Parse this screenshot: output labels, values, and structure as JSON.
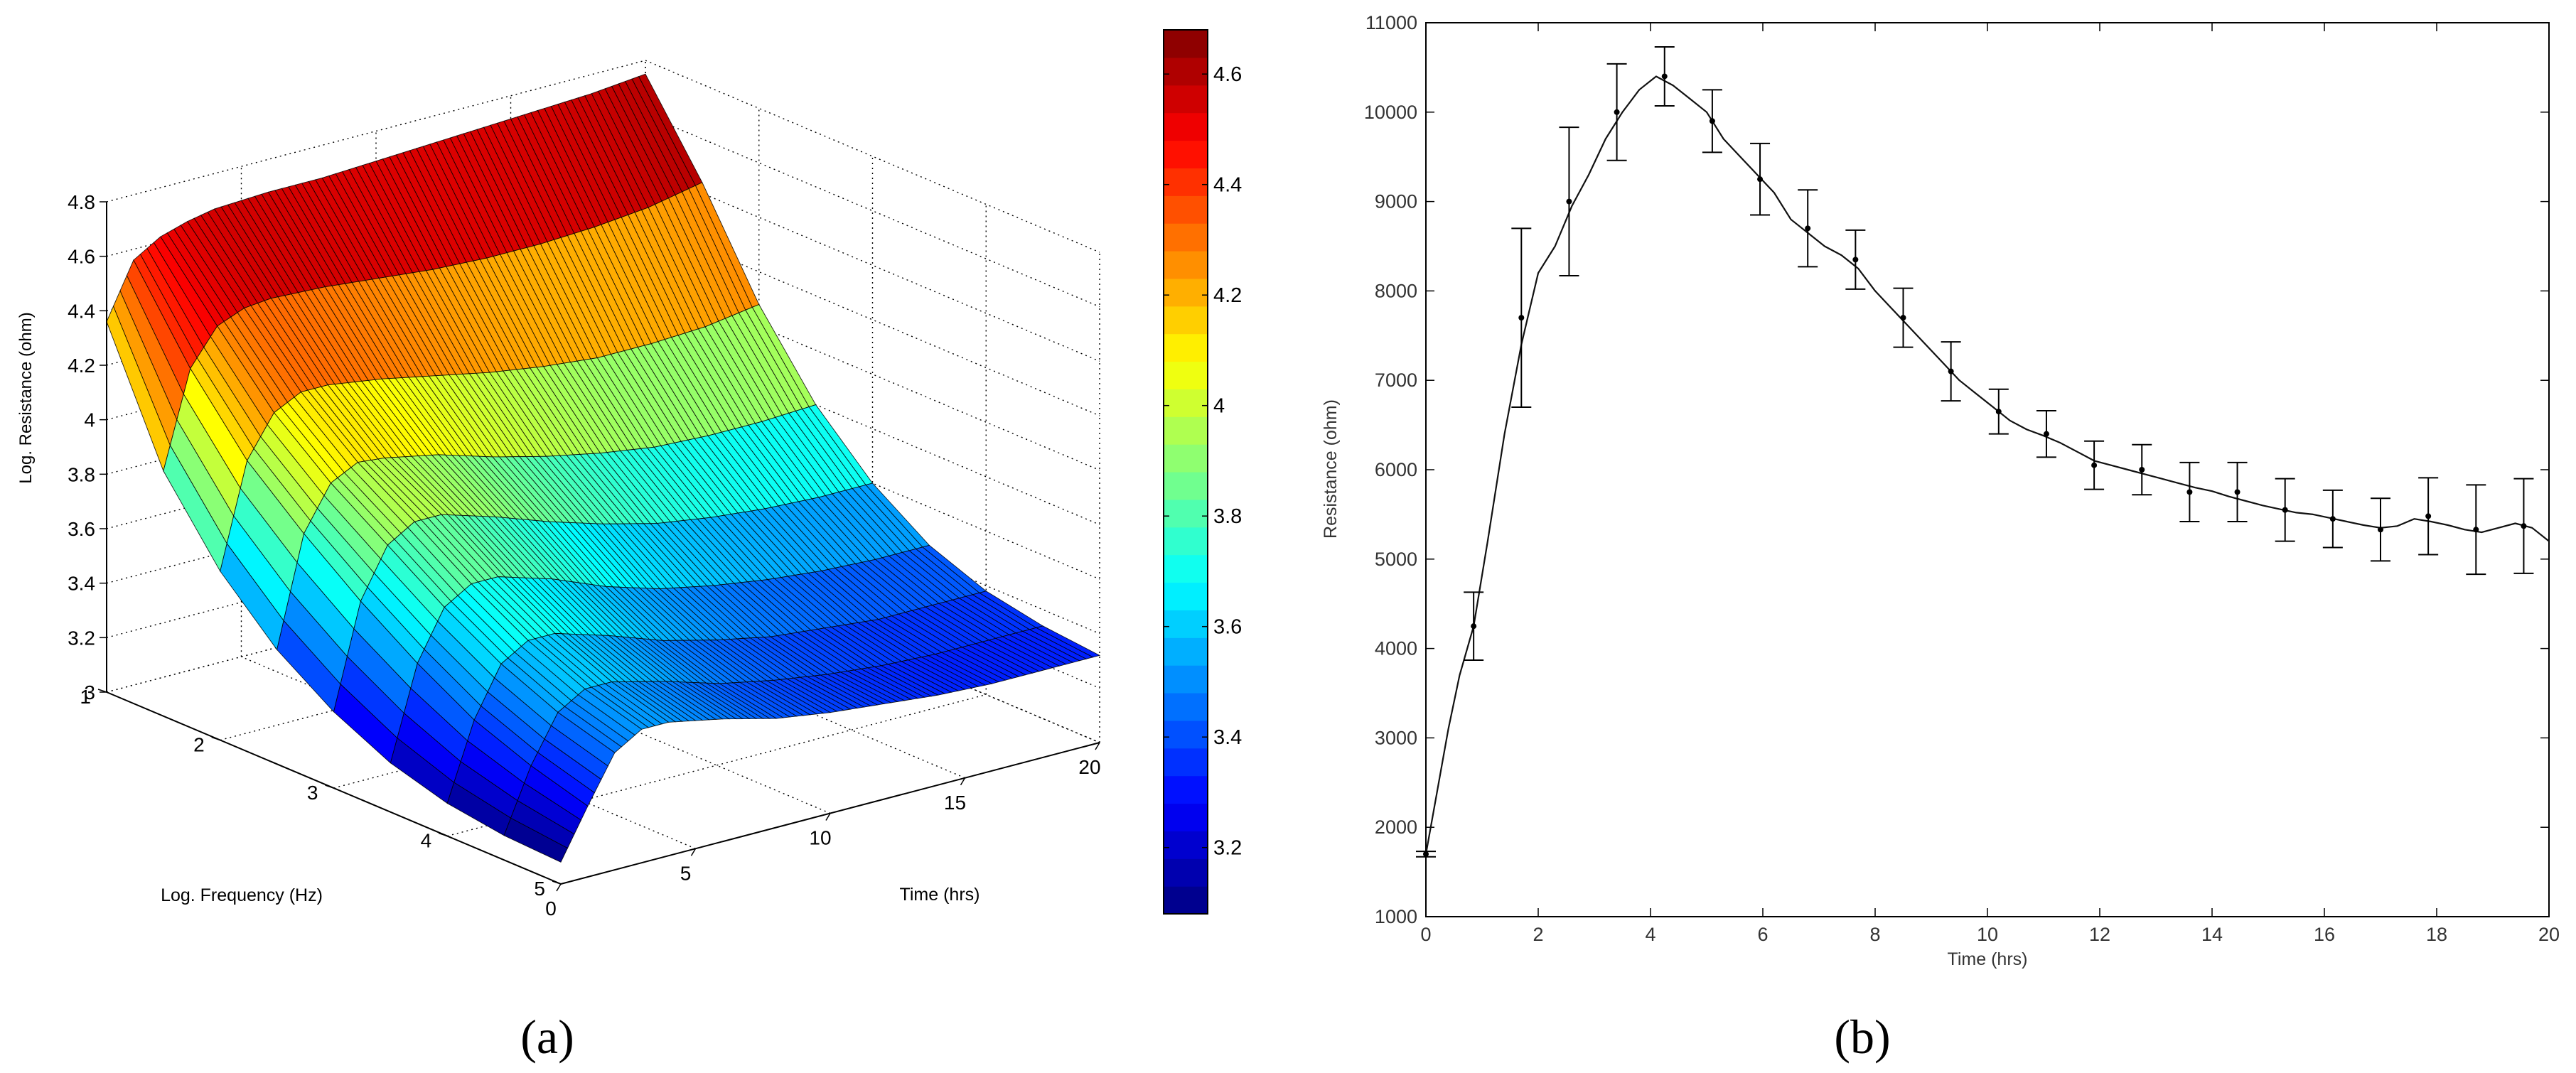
{
  "panels": {
    "a_label": "(a)",
    "b_label": "(b)"
  },
  "chart_data": [
    {
      "type": "surface3d",
      "panel": "a",
      "xlabel": "Time (hrs)",
      "ylabel": "Log. Frequency (Hz)",
      "zlabel": "Log. Resistance (ohm)",
      "x_ticks": [
        "0",
        "5",
        "10",
        "15",
        "20"
      ],
      "y_ticks": [
        "1",
        "2",
        "3",
        "4",
        "5"
      ],
      "z_ticks": [
        "3",
        "3.2",
        "3.4",
        "3.6",
        "3.8",
        "4",
        "4.2",
        "4.4",
        "4.6",
        "4.8"
      ],
      "xlim": [
        0,
        20
      ],
      "ylim": [
        1,
        5
      ],
      "zlim": [
        3,
        4.8
      ],
      "grid": true,
      "colormap": "jet",
      "colorbar": {
        "ticks": [
          "3.2",
          "3.4",
          "3.6",
          "3.8",
          "4",
          "4.2",
          "4.4",
          "4.6"
        ],
        "range": [
          3.08,
          4.68
        ],
        "colors": [
          "#00008f",
          "#0000ff",
          "#00ffff",
          "#7fff7f",
          "#ffff00",
          "#ff7f00",
          "#ff0000",
          "#800000"
        ]
      },
      "freq_rows_log_hz": [
        1,
        1.5,
        2,
        2.5,
        3,
        3.5,
        4,
        4.5,
        5
      ],
      "time_cols_hrs": [
        0,
        1,
        2,
        3,
        4,
        6,
        8,
        10,
        12,
        14,
        16,
        18,
        20
      ],
      "z_values": [
        [
          4.36,
          4.56,
          4.62,
          4.65,
          4.67,
          4.68,
          4.68,
          4.69,
          4.7,
          4.71,
          4.72,
          4.73,
          4.75
        ],
        [
          3.9,
          4.25,
          4.38,
          4.42,
          4.43,
          4.42,
          4.4,
          4.38,
          4.37,
          4.37,
          4.38,
          4.4,
          4.44
        ],
        [
          3.62,
          4.0,
          4.15,
          4.2,
          4.2,
          4.17,
          4.13,
          4.09,
          4.06,
          4.04,
          4.04,
          4.05,
          4.08
        ],
        [
          3.42,
          3.82,
          3.98,
          4.03,
          4.02,
          3.98,
          3.92,
          3.87,
          3.83,
          3.8,
          3.79,
          3.79,
          3.8
        ],
        [
          3.28,
          3.66,
          3.84,
          3.9,
          3.9,
          3.84,
          3.77,
          3.71,
          3.66,
          3.63,
          3.61,
          3.6,
          3.6
        ],
        [
          3.18,
          3.52,
          3.7,
          3.76,
          3.76,
          3.7,
          3.62,
          3.56,
          3.52,
          3.49,
          3.47,
          3.46,
          3.46
        ],
        [
          3.12,
          3.4,
          3.58,
          3.64,
          3.64,
          3.58,
          3.51,
          3.46,
          3.42,
          3.4,
          3.38,
          3.38,
          3.38
        ],
        [
          3.09,
          3.32,
          3.49,
          3.55,
          3.55,
          3.5,
          3.44,
          3.4,
          3.37,
          3.35,
          3.34,
          3.34,
          3.34
        ],
        [
          3.08,
          3.26,
          3.43,
          3.49,
          3.49,
          3.45,
          3.4,
          3.37,
          3.35,
          3.33,
          3.32,
          3.32,
          3.32
        ]
      ]
    },
    {
      "type": "line",
      "panel": "b",
      "xlabel": "Time (hrs)",
      "ylabel": "Resistance (ohm)",
      "xlim": [
        0,
        20
      ],
      "ylim": [
        1000,
        11000
      ],
      "x_ticks": [
        "0",
        "2",
        "4",
        "6",
        "8",
        "10",
        "12",
        "14",
        "16",
        "18",
        "20"
      ],
      "y_ticks": [
        "1000",
        "2000",
        "3000",
        "4000",
        "5000",
        "6000",
        "7000",
        "8000",
        "9000",
        "10000",
        "11000"
      ],
      "grid": false,
      "line": {
        "x": [
          0,
          0.2,
          0.4,
          0.6,
          0.85,
          1.1,
          1.4,
          1.7,
          2.0,
          2.3,
          2.6,
          2.9,
          3.2,
          3.5,
          3.8,
          4.1,
          4.4,
          4.7,
          5.0,
          5.3,
          5.6,
          5.9,
          6.2,
          6.5,
          6.8,
          7.1,
          7.4,
          7.7,
          8.0,
          8.3,
          8.6,
          8.9,
          9.2,
          9.5,
          9.8,
          10.1,
          10.4,
          10.7,
          11.0,
          11.3,
          11.6,
          11.9,
          12.2,
          12.5,
          12.8,
          13.1,
          13.4,
          13.7,
          14.0,
          14.3,
          14.6,
          14.9,
          15.2,
          15.5,
          15.8,
          16.1,
          16.4,
          16.7,
          17.0,
          17.3,
          17.6,
          17.9,
          18.2,
          18.5,
          18.8,
          19.1,
          19.4,
          19.7,
          20.0
        ],
        "y": [
          1700,
          2400,
          3100,
          3700,
          4250,
          5200,
          6400,
          7400,
          8200,
          8500,
          8950,
          9300,
          9700,
          10000,
          10250,
          10400,
          10300,
          10150,
          10000,
          9700,
          9500,
          9300,
          9100,
          8800,
          8650,
          8500,
          8400,
          8250,
          8000,
          7800,
          7600,
          7400,
          7200,
          7000,
          6850,
          6700,
          6550,
          6450,
          6380,
          6300,
          6200,
          6100,
          6050,
          6000,
          5950,
          5900,
          5850,
          5800,
          5760,
          5700,
          5650,
          5600,
          5560,
          5520,
          5500,
          5460,
          5420,
          5380,
          5350,
          5370,
          5450,
          5420,
          5380,
          5330,
          5300,
          5350,
          5400,
          5350,
          5200
        ]
      },
      "error_bars": {
        "x": [
          0,
          0.85,
          1.7,
          2.55,
          3.4,
          4.25,
          5.1,
          5.95,
          6.8,
          7.65,
          8.5,
          9.35,
          10.2,
          11.05,
          11.9,
          12.75,
          13.6,
          14.45,
          15.3,
          16.15,
          17.0,
          17.85,
          18.7,
          19.55
        ],
        "y": [
          1700,
          4250,
          7700,
          9000,
          10000,
          10400,
          9900,
          9250,
          8700,
          8350,
          7700,
          7100,
          6650,
          6400,
          6050,
          6000,
          5750,
          5750,
          5550,
          5450,
          5330,
          5480,
          5330,
          5370
        ],
        "err": [
          30,
          380,
          1000,
          830,
          540,
          330,
          350,
          400,
          430,
          330,
          330,
          330,
          250,
          260,
          270,
          280,
          330,
          330,
          350,
          320,
          350,
          430,
          500,
          530
        ]
      }
    }
  ]
}
